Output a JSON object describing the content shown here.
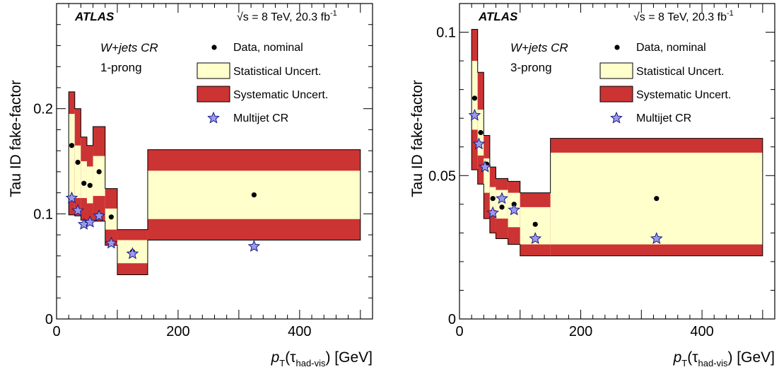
{
  "figure": {
    "experiment": "ATLAS",
    "energy_label": "√s = 8 TeV, 20.3 fb",
    "energy_sup": "-1",
    "ylabel": "Tau ID fake-factor",
    "xlabel_p": "p",
    "xlabel_T": "T",
    "xlabel_tau": "(τ",
    "xlabel_sub": "had-vis",
    "xlabel_unit": ") [GeV]",
    "legend": {
      "data": "Data, nominal",
      "stat": "Statistical Uncert.",
      "syst": "Systematic Uncert.",
      "multijet": "Multijet CR"
    },
    "colors": {
      "stat": "#ffffcc",
      "syst": "#cc3333",
      "multijet": "#9999ee",
      "data": "#000000"
    }
  },
  "chart_data": [
    {
      "type": "scatter",
      "panel": "left",
      "region_line1": "W+jets CR",
      "region_line2": "1-prong",
      "xlim": [
        0,
        520
      ],
      "ylim": [
        0,
        0.3
      ],
      "xticks": [
        {
          "v": 0,
          "label": "0"
        },
        {
          "v": 200,
          "label": "200"
        },
        {
          "v": 400,
          "label": "400"
        }
      ],
      "yticks": [
        {
          "v": 0,
          "label": "0"
        },
        {
          "v": 0.1,
          "label": "0.1"
        },
        {
          "v": 0.2,
          "label": "0.2"
        }
      ],
      "bins": [
        {
          "lo": 20,
          "hi": 30,
          "y": 0.165,
          "stat": [
            0.115,
            0.195
          ],
          "syst": [
            0.099,
            0.216
          ]
        },
        {
          "lo": 30,
          "hi": 40,
          "y": 0.149,
          "stat": [
            0.115,
            0.165
          ],
          "syst": [
            0.098,
            0.2
          ]
        },
        {
          "lo": 40,
          "hi": 50,
          "y": 0.129,
          "stat": [
            0.115,
            0.15
          ],
          "syst": [
            0.094,
            0.173
          ]
        },
        {
          "lo": 50,
          "hi": 60,
          "y": 0.127,
          "stat": [
            0.11,
            0.145
          ],
          "syst": [
            0.093,
            0.165
          ]
        },
        {
          "lo": 60,
          "hi": 80,
          "y": 0.14,
          "stat": [
            0.117,
            0.155
          ],
          "syst": [
            0.093,
            0.183
          ]
        },
        {
          "lo": 80,
          "hi": 100,
          "y": 0.097,
          "stat": [
            0.085,
            0.105
          ],
          "syst": [
            0.07,
            0.124
          ]
        },
        {
          "lo": 100,
          "hi": 150,
          "y": 0.064,
          "stat": [
            0.053,
            0.075
          ],
          "syst": [
            0.042,
            0.085
          ]
        },
        {
          "lo": 150,
          "hi": 500,
          "y": 0.118,
          "stat": [
            0.095,
            0.141
          ],
          "syst": [
            0.075,
            0.161
          ]
        }
      ],
      "multijet": [
        {
          "x": 25,
          "y": 0.115
        },
        {
          "x": 35,
          "y": 0.103
        },
        {
          "x": 45,
          "y": 0.09
        },
        {
          "x": 55,
          "y": 0.092
        },
        {
          "x": 70,
          "y": 0.098
        },
        {
          "x": 90,
          "y": 0.072
        },
        {
          "x": 125,
          "y": 0.062
        },
        {
          "x": 325,
          "y": 0.069
        }
      ]
    },
    {
      "type": "scatter",
      "panel": "right",
      "region_line1": "W+jets CR",
      "region_line2": "3-prong",
      "xlim": [
        0,
        520
      ],
      "ylim": [
        0,
        0.11
      ],
      "xticks": [
        {
          "v": 0,
          "label": "0"
        },
        {
          "v": 200,
          "label": "200"
        },
        {
          "v": 400,
          "label": "400"
        }
      ],
      "yticks": [
        {
          "v": 0,
          "label": "0"
        },
        {
          "v": 0.05,
          "label": "0.05"
        },
        {
          "v": 0.1,
          "label": "0.1"
        }
      ],
      "bins": [
        {
          "lo": 20,
          "hi": 30,
          "y": 0.077,
          "stat": [
            0.066,
            0.09
          ],
          "syst": [
            0.052,
            0.101
          ]
        },
        {
          "lo": 30,
          "hi": 40,
          "y": 0.065,
          "stat": [
            0.057,
            0.073
          ],
          "syst": [
            0.047,
            0.086
          ]
        },
        {
          "lo": 40,
          "hi": 50,
          "y": 0.054,
          "stat": [
            0.044,
            0.056
          ],
          "syst": [
            0.035,
            0.064
          ]
        },
        {
          "lo": 50,
          "hi": 60,
          "y": 0.042,
          "stat": [
            0.038,
            0.046
          ],
          "syst": [
            0.03,
            0.053
          ]
        },
        {
          "lo": 60,
          "hi": 80,
          "y": 0.039,
          "stat": [
            0.035,
            0.045
          ],
          "syst": [
            0.028,
            0.049
          ]
        },
        {
          "lo": 80,
          "hi": 100,
          "y": 0.04,
          "stat": [
            0.032,
            0.044
          ],
          "syst": [
            0.026,
            0.048
          ]
        },
        {
          "lo": 100,
          "hi": 150,
          "y": 0.033,
          "stat": [
            0.026,
            0.039
          ],
          "syst": [
            0.022,
            0.044
          ]
        },
        {
          "lo": 150,
          "hi": 500,
          "y": 0.042,
          "stat": [
            0.026,
            0.058
          ],
          "syst": [
            0.022,
            0.063
          ]
        }
      ],
      "multijet": [
        {
          "x": 25,
          "y": 0.071
        },
        {
          "x": 32,
          "y": 0.061
        },
        {
          "x": 42,
          "y": 0.053
        },
        {
          "x": 55,
          "y": 0.037
        },
        {
          "x": 70,
          "y": 0.042
        },
        {
          "x": 90,
          "y": 0.038
        },
        {
          "x": 125,
          "y": 0.028
        },
        {
          "x": 325,
          "y": 0.028
        }
      ]
    }
  ]
}
